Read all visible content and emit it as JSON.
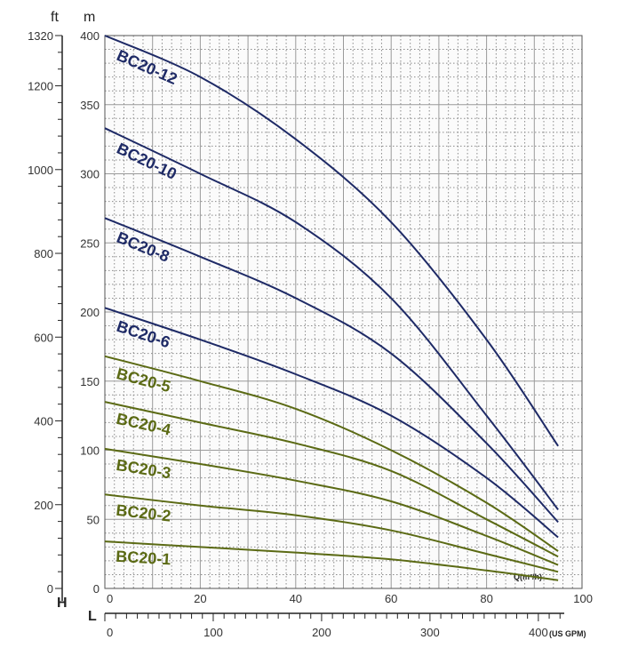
{
  "chart_data": {
    "type": "line",
    "axes": {
      "m_unit": "m",
      "ft_unit": "ft",
      "h_letter": "H",
      "l_letter": "L",
      "q_unit": "Q(m³/h)",
      "gpm_unit": "(US GPM)"
    },
    "x_range_m3h": [
      0,
      100
    ],
    "y_range_m": [
      0,
      400
    ],
    "y_range_ft": [
      0,
      1320
    ],
    "x_ticks_m3h": [
      "0",
      "20",
      "40",
      "60",
      "80",
      "100"
    ],
    "x_ticks_gpm": [
      "0",
      "100",
      "200",
      "300",
      "400"
    ],
    "y_ticks_m": [
      "0",
      "50",
      "100",
      "150",
      "200",
      "250",
      "300",
      "350",
      "400"
    ],
    "y_ticks_ft": [
      "0",
      "200",
      "400",
      "600",
      "800",
      "1000",
      "1200",
      "1320"
    ],
    "grid": true,
    "colors": {
      "dark_series": "#1e2a66",
      "green_series": "#5b6a14",
      "grid": "#8a8a8a"
    },
    "series": [
      {
        "name": "BC20-12",
        "color": "#1e2a66",
        "x": [
          0,
          20,
          40,
          60,
          80,
          95
        ],
        "y": [
          400,
          370,
          325,
          265,
          180,
          103
        ]
      },
      {
        "name": "BC20-10",
        "color": "#1e2a66",
        "x": [
          0,
          20,
          40,
          60,
          80,
          95
        ],
        "y": [
          333,
          300,
          265,
          210,
          125,
          57
        ]
      },
      {
        "name": "BC20-8",
        "color": "#1e2a66",
        "x": [
          0,
          20,
          40,
          60,
          80,
          95
        ],
        "y": [
          268,
          240,
          210,
          170,
          105,
          48
        ]
      },
      {
        "name": "BC20-6",
        "color": "#1e2a66",
        "x": [
          0,
          20,
          40,
          60,
          80,
          95
        ],
        "y": [
          203,
          180,
          155,
          125,
          80,
          37
        ]
      },
      {
        "name": "BC20-5",
        "color": "#5b6a14",
        "x": [
          0,
          20,
          40,
          60,
          80,
          95
        ],
        "y": [
          168,
          150,
          130,
          100,
          62,
          27
        ]
      },
      {
        "name": "BC20-4",
        "color": "#5b6a14",
        "x": [
          0,
          20,
          40,
          60,
          80,
          95
        ],
        "y": [
          135,
          120,
          105,
          85,
          50,
          23
        ]
      },
      {
        "name": "BC20-3",
        "color": "#5b6a14",
        "x": [
          0,
          20,
          40,
          60,
          80,
          95
        ],
        "y": [
          101,
          90,
          78,
          63,
          38,
          17
        ]
      },
      {
        "name": "BC20-2",
        "color": "#5b6a14",
        "x": [
          0,
          20,
          40,
          60,
          80,
          95
        ],
        "y": [
          68,
          60,
          53,
          42,
          25,
          12
        ]
      },
      {
        "name": "BC20-1",
        "color": "#5b6a14",
        "x": [
          0,
          20,
          40,
          60,
          80,
          95
        ],
        "y": [
          34,
          30,
          26,
          21,
          13,
          6
        ]
      }
    ]
  }
}
